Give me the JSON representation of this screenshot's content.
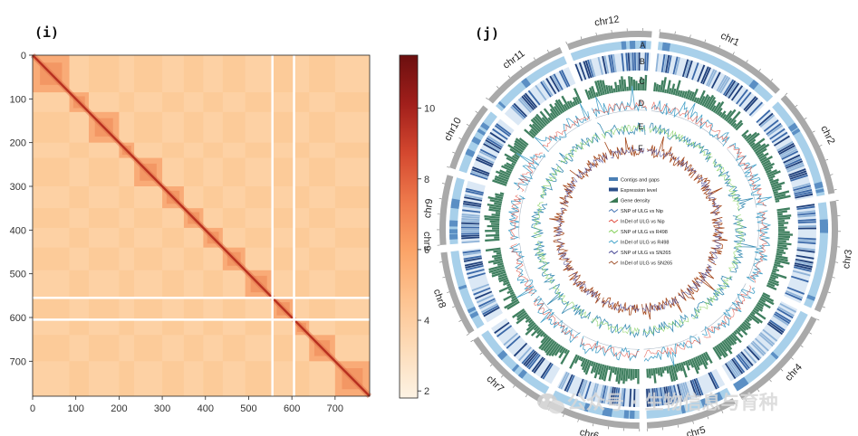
{
  "panels": {
    "left_label": "(i)",
    "right_label": "(j)"
  },
  "chart_data": [
    {
      "type": "heatmap",
      "title": "",
      "xlabel": "",
      "ylabel": "",
      "matrix_size": 780,
      "xlim": [
        0,
        780
      ],
      "ylim": [
        780,
        0
      ],
      "x_ticks": [
        0,
        100,
        200,
        300,
        400,
        500,
        600,
        700
      ],
      "y_ticks": [
        0,
        100,
        200,
        300,
        400,
        500,
        600,
        700
      ],
      "blocks": [
        [
          0,
          85
        ],
        [
          85,
          130
        ],
        [
          130,
          200
        ],
        [
          200,
          235
        ],
        [
          235,
          300
        ],
        [
          300,
          350
        ],
        [
          350,
          395
        ],
        [
          395,
          440
        ],
        [
          440,
          492
        ],
        [
          492,
          555
        ],
        [
          555,
          605
        ],
        [
          605,
          640
        ],
        [
          640,
          700
        ],
        [
          700,
          780
        ]
      ],
      "gaps": [
        555,
        605
      ],
      "colorbar": {
        "label": "chr9",
        "min": 1.8,
        "max": 11.5,
        "ticks": [
          2,
          4,
          6,
          8,
          10
        ],
        "colormap": [
          "#fdf3e4",
          "#fddcb9",
          "#fdc391",
          "#fba468",
          "#ee7a4c",
          "#d4482f",
          "#a11f1b",
          "#6b0f0f"
        ]
      },
      "colors": {
        "base": "#fdce9e",
        "diag": "#b7301f",
        "gap": "#ffffff"
      }
    },
    {
      "type": "circos",
      "ring_letters": [
        "A",
        "B",
        "C",
        "D",
        "E",
        "F"
      ],
      "chromosomes": [
        {
          "name": "chr1",
          "length": 44
        },
        {
          "name": "chr2",
          "length": 36
        },
        {
          "name": "chr3",
          "length": 37
        },
        {
          "name": "chr4",
          "length": 36
        },
        {
          "name": "chr5",
          "length": 30
        },
        {
          "name": "chr6",
          "length": 31
        },
        {
          "name": "chr7",
          "length": 30
        },
        {
          "name": "chr8",
          "length": 28
        },
        {
          "name": "chr9",
          "length": 23
        },
        {
          "name": "chr10",
          "length": 23
        },
        {
          "name": "chr11",
          "length": 29
        },
        {
          "name": "chr12",
          "length": 28
        }
      ],
      "legend": [
        {
          "label": "Contigs and gaps",
          "color": "#4a7fb5",
          "kind": "bar"
        },
        {
          "label": "Expression level",
          "color": "#2b4f8a",
          "kind": "bar"
        },
        {
          "label": "Gene density",
          "color": "#3a7a55",
          "kind": "tri"
        },
        {
          "label": "SNP of ULG vs Nip",
          "color": "#3d6fb0",
          "kind": "line"
        },
        {
          "label": "InDel of ULG vs Nip",
          "color": "#e0483a",
          "kind": "line"
        },
        {
          "label": "SNP of ULG vs R498",
          "color": "#7ccd4f",
          "kind": "line"
        },
        {
          "label": "InDel of ULG vs R498",
          "color": "#3aa0c8",
          "kind": "line"
        },
        {
          "label": "SNP of ULG vs SN265",
          "color": "#3d3d8f",
          "kind": "line"
        },
        {
          "label": "InDel of ULG vs SN265",
          "color": "#a0522d",
          "kind": "line"
        }
      ],
      "colors": {
        "ideogram": "#a9a9a9",
        "contig": "#a8d0ea",
        "expression": "#2a4d8f",
        "density": "#3f7f5f",
        "lineD": "#4aa3c9",
        "lineE": "#3f8fb5",
        "lineF": "#a64a1e"
      }
    }
  ],
  "watermark": {
    "text": "公众号 · 生物信息与育种"
  }
}
